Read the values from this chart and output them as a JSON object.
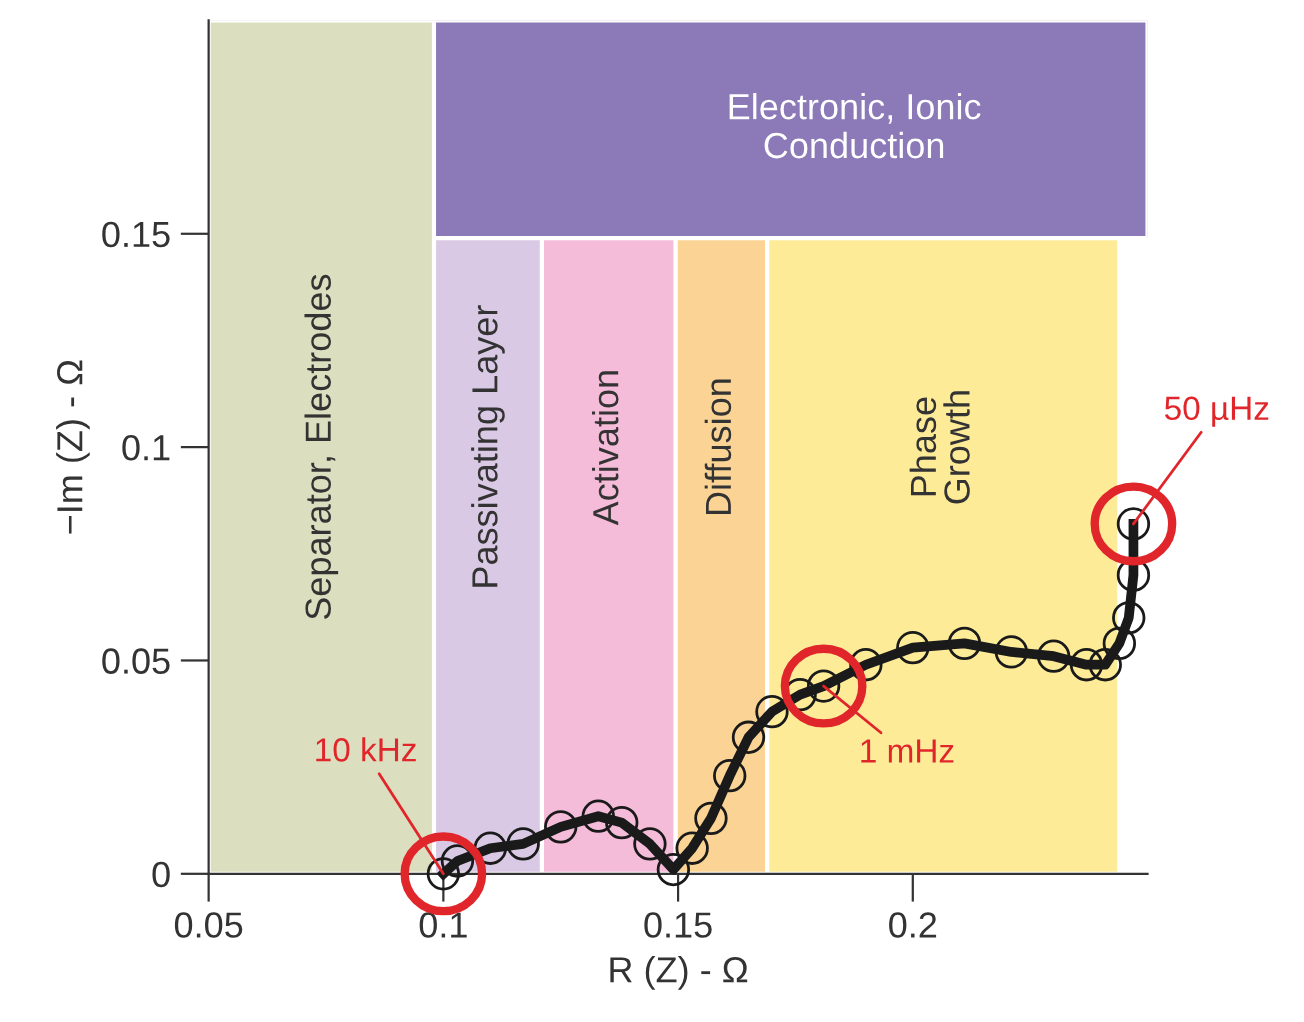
{
  "chart_data": {
    "type": "line",
    "xlabel": "R (Z) - Ω",
    "ylabel": "−Im (Z) - Ω",
    "xlim": [
      0.05,
      0.25
    ],
    "ylim": [
      0,
      0.2
    ],
    "xticks": [
      0.05,
      0.1,
      0.15,
      0.2
    ],
    "yticks": [
      0,
      0.05,
      0.1,
      0.15
    ],
    "x": [
      0.1,
      0.103,
      0.11,
      0.117,
      0.125,
      0.133,
      0.138,
      0.144,
      0.149,
      0.153,
      0.157,
      0.161,
      0.165,
      0.17,
      0.176,
      0.181,
      0.19,
      0.2,
      0.211,
      0.221,
      0.23,
      0.237,
      0.241,
      0.244,
      0.246,
      0.247,
      0.247
    ],
    "series": [
      {
        "color": "#1a1a1a",
        "values": [
          0.0,
          0.003,
          0.006,
          0.007,
          0.011,
          0.0135,
          0.012,
          0.007,
          0.001,
          0.006,
          0.013,
          0.023,
          0.032,
          0.038,
          0.042,
          0.044,
          0.049,
          0.053,
          0.054,
          0.052,
          0.051,
          0.049,
          0.049,
          0.054,
          0.06,
          0.07,
          0.082
        ]
      }
    ],
    "marker": "circle",
    "line_style": "solid",
    "grid": false,
    "legend": false,
    "bands": [
      {
        "axis": "x",
        "from": 0.098,
        "to": 0.121,
        "label": "Passivating Layer",
        "color": "#d9c9e4"
      },
      {
        "axis": "x",
        "from": 0.121,
        "to": 0.1495,
        "label": "Activation",
        "color": "#f5bcd9"
      },
      {
        "axis": "x",
        "from": 0.1495,
        "to": 0.169,
        "label": "Diffusion",
        "color": "#fbd495"
      },
      {
        "axis": "x",
        "from": 0.169,
        "to": 0.244,
        "label": "Phase\nGrowth",
        "color": "#fdeb98"
      },
      {
        "axis": "y",
        "from": 0.149,
        "to": 0.2,
        "label": "Electronic, Ionic\nConduction",
        "color": "#8b79b8"
      },
      {
        "axis": "x",
        "from": 0.05,
        "to": 0.098,
        "label": "Separator, Electrodes",
        "color": "#dcdfbf"
      }
    ],
    "annotations": [
      {
        "text": "10 kHz",
        "x": 0.1,
        "y": 0.0
      },
      {
        "text": "1 mHz",
        "x": 0.181,
        "y": 0.044
      },
      {
        "text": "50 µHz",
        "x": 0.247,
        "y": 0.082
      }
    ]
  }
}
